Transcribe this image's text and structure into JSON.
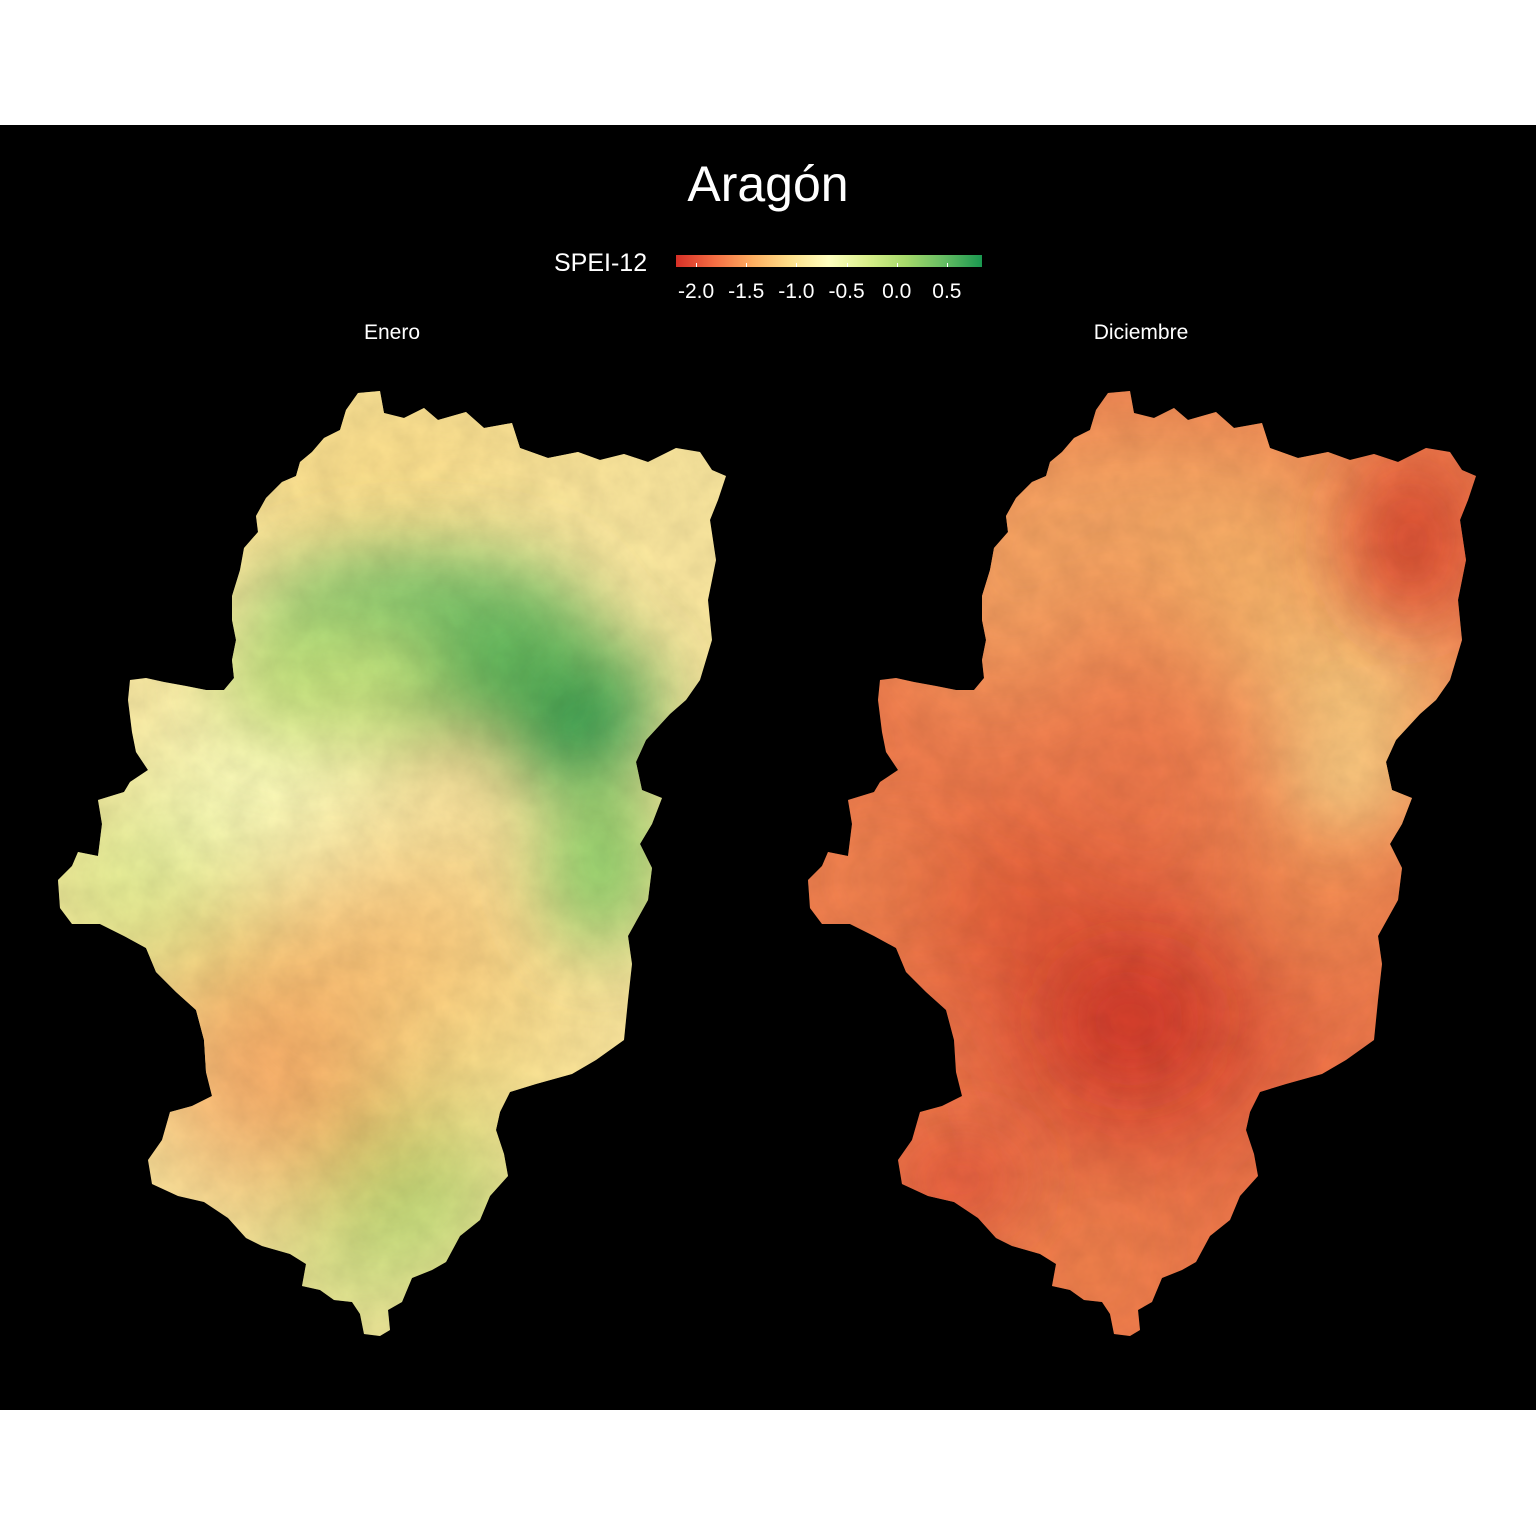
{
  "title": "Aragón",
  "legend": {
    "label": "SPEI-12",
    "min": -2.2,
    "max": 0.85,
    "ticks": [
      {
        "value": -2.0,
        "label": "-2.0"
      },
      {
        "value": -1.5,
        "label": "-1.5"
      },
      {
        "value": -1.0,
        "label": "-1.0"
      },
      {
        "value": -0.5,
        "label": "-0.5"
      },
      {
        "value": 0.0,
        "label": "0.0"
      },
      {
        "value": 0.5,
        "label": "0.5"
      }
    ],
    "colors": [
      "#d73027",
      "#f46d43",
      "#fdae61",
      "#fee08b",
      "#ffffbf",
      "#d9ef8b",
      "#a6d96a",
      "#66bd63",
      "#1a9850"
    ]
  },
  "panels": [
    {
      "title": "Enero"
    },
    {
      "title": "Diciembre"
    }
  ],
  "colors": {
    "background": "#000000",
    "text": "#ffffff"
  }
}
